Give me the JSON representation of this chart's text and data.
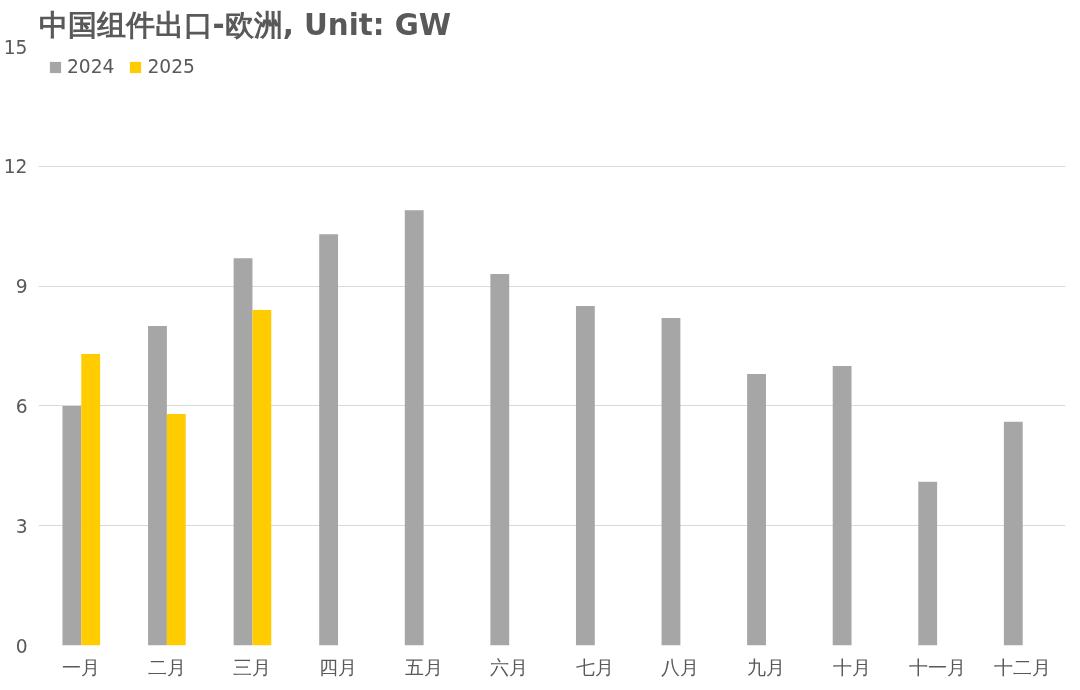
{
  "chart_data": {
    "type": "bar",
    "title": "中国组件出口-欧洲, Unit: GW",
    "categories": [
      "一月",
      "二月",
      "三月",
      "四月",
      "五月",
      "六月",
      "七月",
      "八月",
      "九月",
      "十月",
      "十一月",
      "十二月"
    ],
    "series": [
      {
        "name": "2024",
        "color": "#a6a6a6",
        "values": [
          6.0,
          8.0,
          9.7,
          10.3,
          10.9,
          9.3,
          8.5,
          8.2,
          6.8,
          7.0,
          4.1,
          5.6
        ]
      },
      {
        "name": "2025",
        "color": "#ffcc00",
        "values": [
          7.3,
          5.8,
          8.4,
          null,
          null,
          null,
          null,
          null,
          null,
          null,
          null,
          null
        ]
      }
    ],
    "ylim": [
      0,
      15
    ],
    "yticks": [
      0,
      3,
      6,
      9,
      12,
      15
    ],
    "grid": "y",
    "legend": "top left"
  }
}
